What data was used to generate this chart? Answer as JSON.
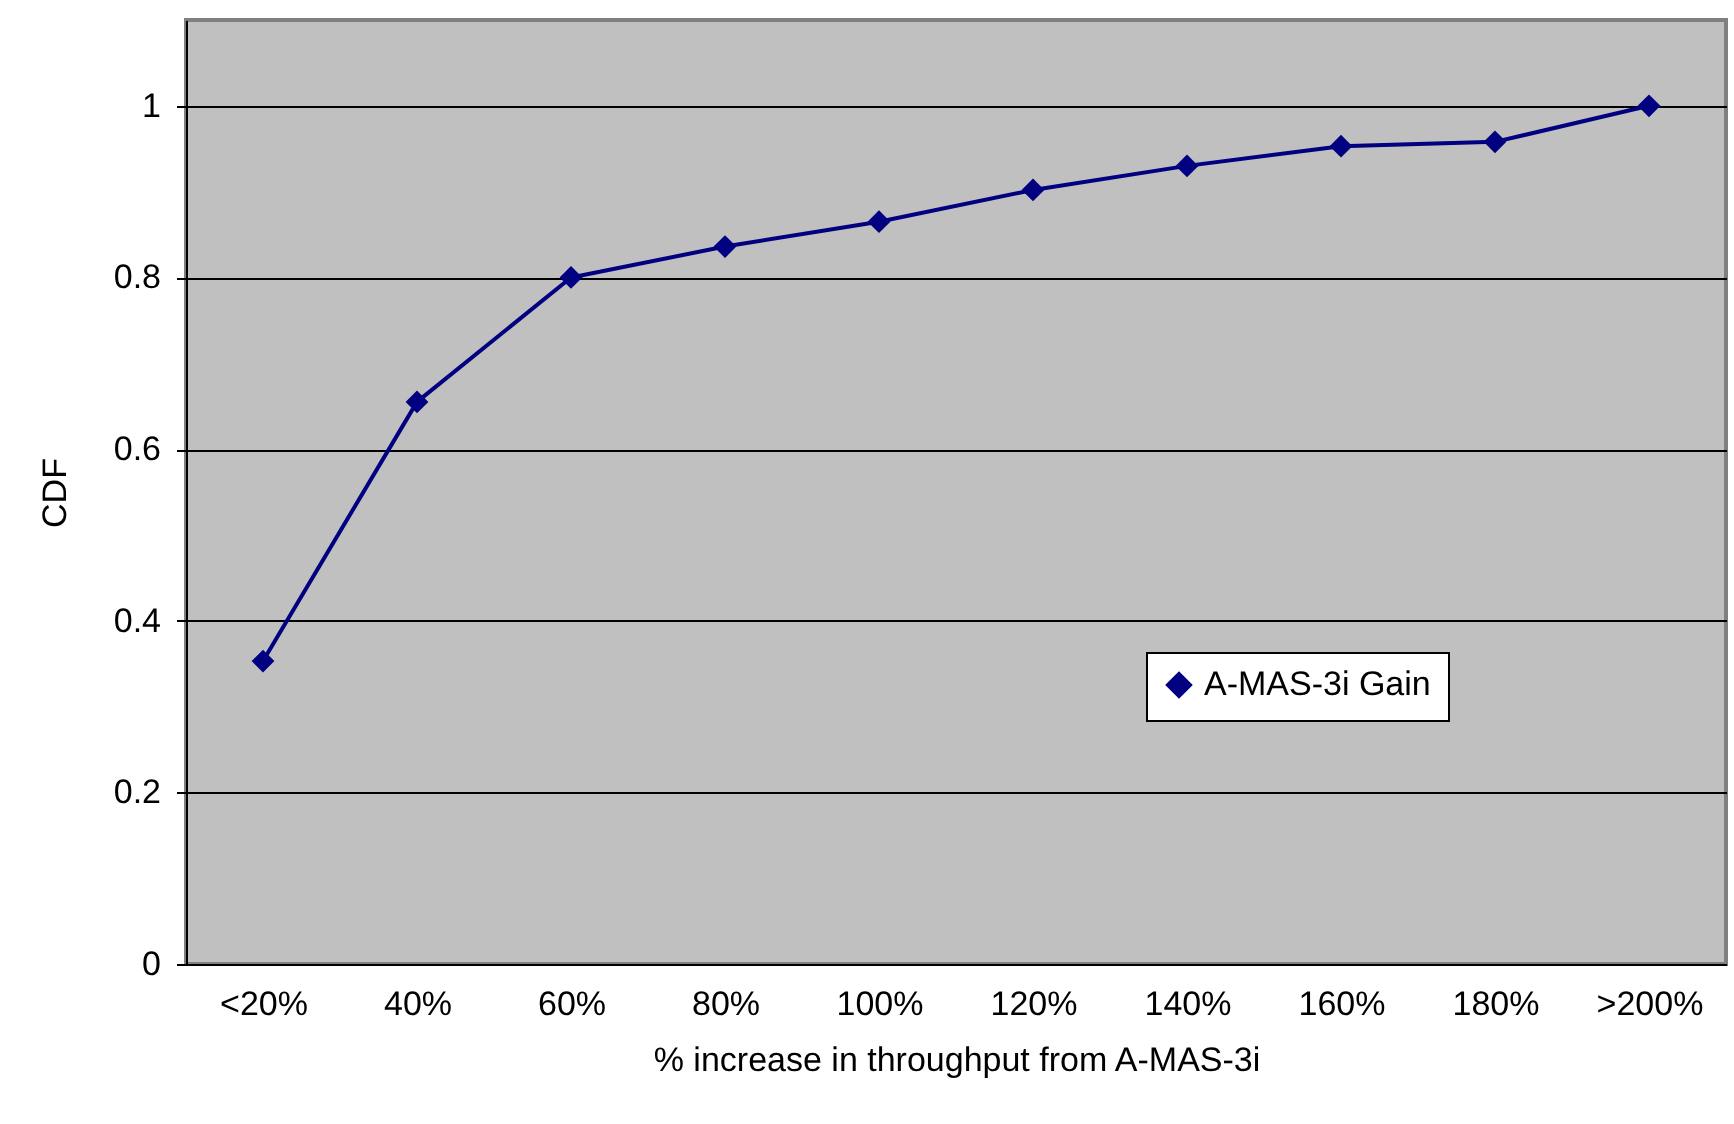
{
  "chart_data": {
    "type": "line",
    "xlabel": "% increase in throughput from A-MAS-3i",
    "ylabel": "CDF",
    "categories": [
      "<20%",
      "40%",
      "60%",
      "80%",
      "100%",
      "120%",
      "140%",
      "160%",
      "180%",
      ">200%"
    ],
    "series": [
      {
        "name": "A-MAS-3i Gain",
        "color": "#000080",
        "values": [
          0.353,
          0.655,
          0.8,
          0.836,
          0.865,
          0.902,
          0.93,
          0.953,
          0.958,
          1.0
        ]
      }
    ],
    "ylim": [
      0,
      1.1
    ],
    "yticks": [
      0,
      0.2,
      0.4,
      0.6,
      0.8,
      1
    ],
    "grid": "y",
    "legend": "right",
    "marker": "diamond",
    "line_style": "solid"
  }
}
